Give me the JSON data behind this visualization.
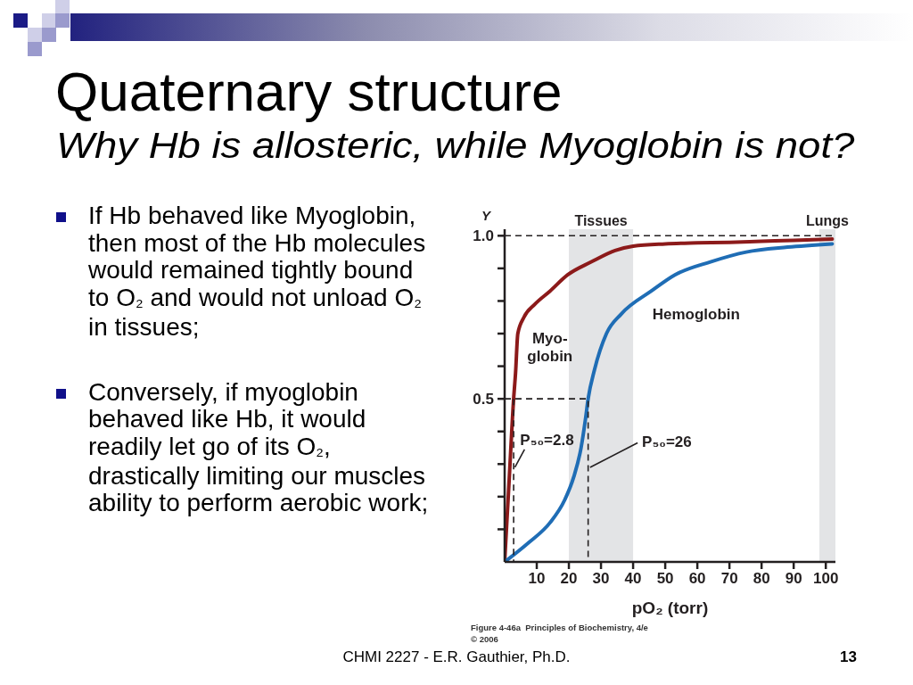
{
  "chart_data": {
    "type": "line",
    "title": "Quaternary structure",
    "subtitle": "Why Hb is allosteric, while Myoglobin is not?",
    "xlabel": "pO₂ (torr)",
    "ylabel": "Y",
    "series": [
      {
        "name": "Myo- globin",
        "color": "#8c1a1a",
        "x": [
          0,
          1.4,
          2.8,
          3.4,
          4.1,
          6,
          9.4,
          14.1,
          19.6,
          27,
          34.4,
          40,
          50,
          60,
          70,
          80,
          90,
          102
        ],
        "values": [
          0,
          0.25,
          0.5,
          0.58,
          0.7,
          0.75,
          0.79,
          0.83,
          0.88,
          0.92,
          0.955,
          0.968,
          0.975,
          0.978,
          0.98,
          0.983,
          0.986,
          0.99
        ]
      },
      {
        "name": "Hemoglobin",
        "color": "#1f6db5",
        "x": [
          0,
          7.6,
          14.1,
          18.7,
          21.5,
          23.8,
          25.2,
          26,
          28,
          31.7,
          36.3,
          45.6,
          53,
          64.1,
          75.2,
          88.1,
          102
        ],
        "values": [
          0,
          0.06,
          0.12,
          0.19,
          0.26,
          0.35,
          0.44,
          0.5,
          0.59,
          0.7,
          0.76,
          0.83,
          0.88,
          0.92,
          0.95,
          0.965,
          0.975
        ]
      },
      {
        "color": "#231f20",
        "line_style": "dashed",
        "x": [
          0,
          26,
          26
        ],
        "values": [
          0.5,
          0.5,
          0
        ]
      },
      {
        "color": "#231f20",
        "line_style": "dashed",
        "x": [
          2.8,
          2.8
        ],
        "values": [
          0.5,
          0
        ]
      }
    ],
    "xlim": [
      0,
      103
    ],
    "xticks": [
      10,
      20,
      30,
      40,
      50,
      60,
      70,
      80,
      90,
      100
    ],
    "ylim": [
      0,
      1.02
    ],
    "yticks": [
      {
        "value": 0.1,
        "label": null
      },
      {
        "value": 0.2,
        "label": null
      },
      {
        "value": 0.3,
        "label": null
      },
      {
        "value": 0.4,
        "label": null
      },
      0.5,
      {
        "value": 0.6,
        "label": null
      },
      {
        "value": 0.7,
        "label": null
      },
      {
        "value": 0.8,
        "label": null
      },
      {
        "value": 0.9,
        "label": null
      },
      {
        "value": 1,
        "label": "1.0"
      }
    ],
    "marker": "none",
    "ref_lines": [
      {
        "axis": "y",
        "value": 1,
        "line_style": "dashed",
        "color": "#231f20"
      }
    ],
    "bands": [
      {
        "axis": "x",
        "from": 20,
        "to": 40,
        "label": "Tissues",
        "color": "#e3e4e6"
      },
      {
        "axis": "x",
        "from": 98,
        "to": 103,
        "label": "Lungs",
        "color": "#e3e4e6"
      }
    ],
    "annotations": [
      "If Hb behaved like Myoglobin, then most of the Hb molecules would remained tightly bound to O₂ and would not unload O₂ in tissues;",
      "Conversely, if myoglobin behaved like Hb, it would readily let go of its O₂, drastically limiting our muscles ability to perform aerobic work;",
      {
        "text": "P₅₀=2.8",
        "x": 2.8,
        "y": 0.29
      },
      {
        "text": "P₅₀=26",
        "x": 26,
        "y": 0.29
      },
      "Figure 4-46a  Principles of Biochemistry, 4/e",
      "© 2006",
      "CHMI 2227 - E.R. Gauthier, Ph.D.",
      "13"
    ]
  }
}
